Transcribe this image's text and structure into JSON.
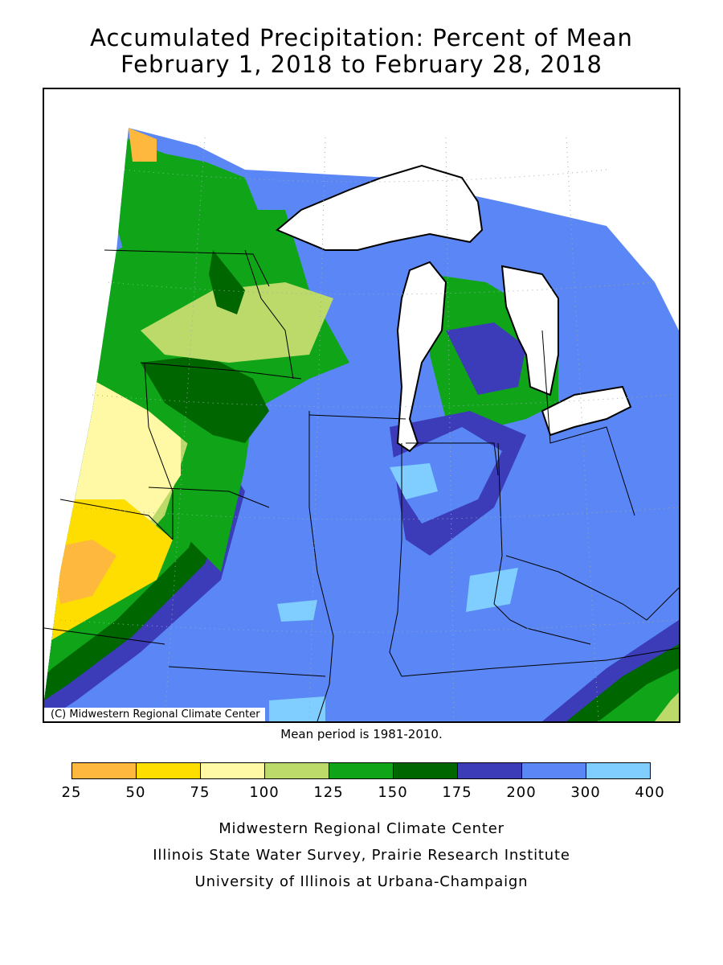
{
  "title": {
    "line1": "Accumulated Precipitation: Percent of Mean",
    "line2": "February 1, 2018 to February 28, 2018"
  },
  "map": {
    "copyright": "(C) Midwestern Regional Climate Center",
    "mean_period": "Mean period is 1981-2010."
  },
  "legend": {
    "ticks": [
      "25",
      "50",
      "75",
      "100",
      "125",
      "150",
      "175",
      "200",
      "300",
      "400"
    ],
    "colors": [
      "#FDB83D",
      "#FEDD00",
      "#FFF9A6",
      "#BCDA6A",
      "#10A418",
      "#006600",
      "#3C3CB9",
      "#5A87F5",
      "#7FCEFF"
    ]
  },
  "credits": {
    "line1": "Midwestern Regional Climate Center",
    "line2": "Illinois State Water Survey, Prairie Research Institute",
    "line3": "University of Illinois at Urbana-Champaign"
  }
}
